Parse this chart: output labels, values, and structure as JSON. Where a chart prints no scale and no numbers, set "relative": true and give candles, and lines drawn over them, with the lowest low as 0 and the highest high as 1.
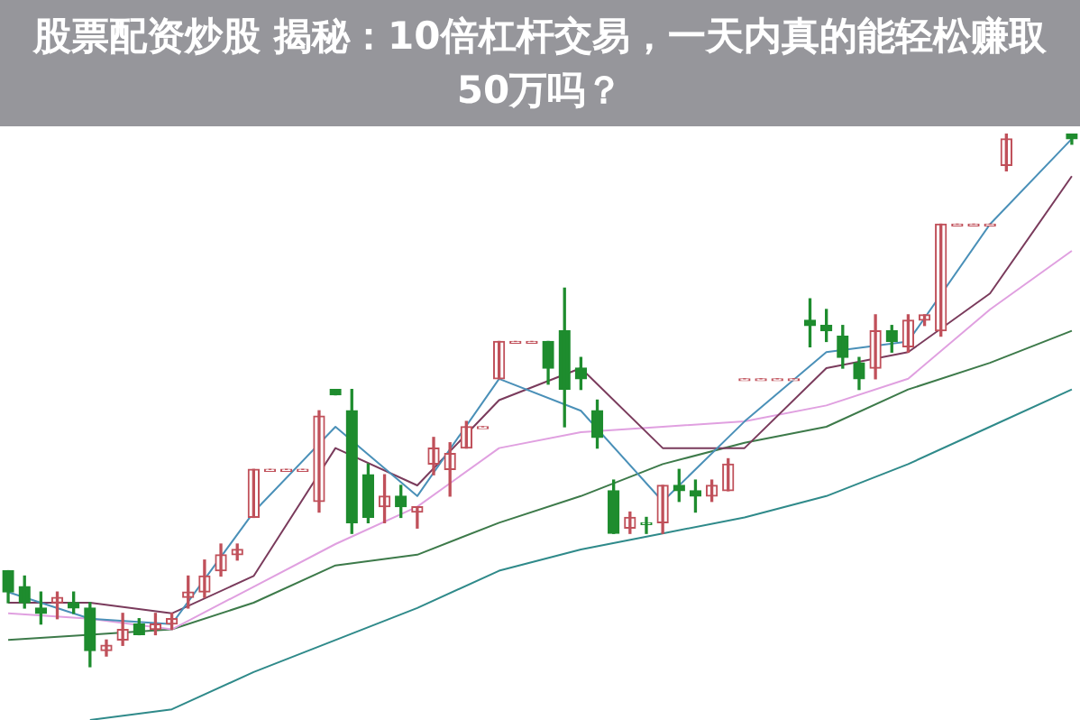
{
  "chart_data": {
    "type": "candlestick",
    "title": "股票配资炒股 揭秘：10倍杠杆交易，一天内真的能轻松赚取50万吗？",
    "relative": true,
    "legend": false,
    "marker": "none",
    "line_style": "solid",
    "categories": [
      null,
      null,
      null,
      null,
      null,
      null,
      null,
      null,
      null,
      null,
      null,
      null,
      null,
      null,
      null,
      null,
      null,
      null,
      null,
      null,
      null,
      null,
      null,
      null,
      null,
      null,
      null,
      null,
      null,
      null,
      null,
      null,
      null,
      null,
      null,
      null,
      null,
      null,
      null,
      null,
      null,
      null,
      null,
      null,
      null,
      null,
      null,
      null,
      null,
      null,
      null,
      null,
      null,
      null,
      null,
      null,
      null,
      null,
      null,
      null,
      null,
      null,
      null,
      null,
      null,
      null
    ],
    "ohlc": [
      [
        0.18,
        0.18,
        0.12,
        0.14
      ],
      [
        0.15,
        0.17,
        0.11,
        0.12
      ],
      [
        0.11,
        0.14,
        0.08,
        0.1
      ],
      [
        0.12,
        0.14,
        0.09,
        0.13
      ],
      [
        0.12,
        0.14,
        0.1,
        0.11
      ],
      [
        0.11,
        0.12,
        0,
        0.03
      ],
      [
        0.03,
        0.05,
        0.02,
        0.04
      ],
      [
        0.05,
        0.1,
        0.04,
        0.07
      ],
      [
        0.08,
        0.09,
        0.06,
        0.06
      ],
      [
        0.07,
        0.1,
        0.06,
        0.08
      ],
      [
        0.08,
        0.1,
        0.07,
        0.09
      ],
      [
        0.13,
        0.17,
        0.11,
        0.14
      ],
      [
        0.14,
        0.2,
        0.13,
        0.17
      ],
      [
        0.18,
        0.23,
        0.17,
        0.21
      ],
      [
        0.21,
        0.23,
        0.2,
        0.22
      ],
      [
        0.28,
        0.37,
        0.28,
        0.37
      ],
      [
        0.37,
        0.37,
        0.37,
        0.37
      ],
      [
        0.37,
        0.37,
        0.37,
        0.37
      ],
      [
        0.37,
        0.37,
        0.37,
        0.37
      ],
      [
        0.31,
        0.48,
        0.29,
        0.47
      ],
      [
        0.52,
        0.52,
        0.51,
        0.51
      ],
      [
        0.48,
        0.52,
        0.25,
        0.27
      ],
      [
        0.36,
        0.38,
        0.27,
        0.28
      ],
      [
        0.3,
        0.36,
        0.27,
        0.32
      ],
      [
        0.32,
        0.34,
        0.28,
        0.3
      ],
      [
        0.29,
        0.3,
        0.26,
        0.3
      ],
      [
        0.38,
        0.43,
        0.36,
        0.41
      ],
      [
        0.37,
        0.42,
        0.32,
        0.4
      ],
      [
        0.41,
        0.46,
        0.41,
        0.45
      ],
      [
        0.45,
        0.45,
        0.45,
        0.45
      ],
      [
        0.54,
        0.61,
        0.54,
        0.61
      ],
      [
        0.61,
        0.61,
        0.61,
        0.61
      ],
      [
        0.61,
        0.61,
        0.61,
        0.61
      ],
      [
        0.61,
        0.61,
        0.53,
        0.56
      ],
      [
        0.63,
        0.71,
        0.45,
        0.52
      ],
      [
        0.56,
        0.58,
        0.52,
        0.54
      ],
      [
        0.48,
        0.5,
        0.41,
        0.43
      ],
      [
        0.33,
        0.35,
        0.25,
        0.25
      ],
      [
        0.26,
        0.29,
        0.25,
        0.28
      ],
      [
        0.27,
        0.28,
        0.25,
        0.27
      ],
      [
        0.27,
        0.34,
        0.25,
        0.34
      ],
      [
        0.34,
        0.37,
        0.31,
        0.33
      ],
      [
        0.33,
        0.35,
        0.29,
        0.32
      ],
      [
        0.32,
        0.35,
        0.31,
        0.34
      ],
      [
        0.33,
        0.39,
        0.33,
        0.38
      ],
      [
        0.54,
        0.54,
        0.54,
        0.54
      ],
      [
        0.54,
        0.54,
        0.54,
        0.54
      ],
      [
        0.54,
        0.54,
        0.54,
        0.54
      ],
      [
        0.54,
        0.54,
        0.54,
        0.54
      ],
      [
        0.65,
        0.69,
        0.6,
        0.64
      ],
      [
        0.64,
        0.67,
        0.61,
        0.63
      ],
      [
        0.62,
        0.64,
        0.56,
        0.58
      ],
      [
        0.57,
        0.58,
        0.52,
        0.54
      ],
      [
        0.56,
        0.66,
        0.54,
        0.63
      ],
      [
        0.63,
        0.64,
        0.59,
        0.61
      ],
      [
        0.6,
        0.66,
        0.59,
        0.65
      ],
      [
        0.65,
        0.66,
        0.64,
        0.66
      ],
      [
        0.63,
        0.83,
        0.62,
        0.83
      ],
      [
        0.83,
        0.83,
        0.83,
        0.83
      ],
      [
        0.83,
        0.83,
        0.83,
        0.83
      ],
      [
        0.83,
        0.83,
        0.83,
        0.83
      ],
      [
        0.94,
        1,
        0.93,
        0.99
      ],
      null,
      null,
      null,
      [
        1,
        1,
        0.98,
        0.99
      ]
    ],
    "colors": [
      "#1e8c2e",
      "#1e8c2e",
      "#1e8c2e",
      "#c0505a",
      "#1e8c2e",
      "#1e8c2e",
      "#c0505a",
      "#c0505a",
      "#1e8c2e",
      "#c0505a",
      "#c0505a",
      "#c0505a",
      "#c0505a",
      "#c0505a",
      "#c0505a",
      "#c0505a",
      "#c0505a",
      "#c0505a",
      "#c0505a",
      "#c0505a",
      "#1e8c2e",
      "#1e8c2e",
      "#1e8c2e",
      "#c0505a",
      "#1e8c2e",
      "#c0505a",
      "#c0505a",
      "#c0505a",
      "#c0505a",
      "#c0505a",
      "#c0505a",
      "#c0505a",
      "#c0505a",
      "#1e8c2e",
      "#1e8c2e",
      "#1e8c2e",
      "#1e8c2e",
      "#1e8c2e",
      "#c0505a",
      "#1e8c2e",
      "#c0505a",
      "#1e8c2e",
      "#1e8c2e",
      "#c0505a",
      "#c0505a",
      "#c0505a",
      "#c0505a",
      "#c0505a",
      "#c0505a",
      "#1e8c2e",
      "#1e8c2e",
      "#1e8c2e",
      "#1e8c2e",
      "#c0505a",
      "#1e8c2e",
      "#c0505a",
      "#c0505a",
      "#c0505a",
      "#c0505a",
      "#c0505a",
      "#c0505a",
      "#c0505a",
      "#1e8c2e",
      "#1e8c2e",
      "#1e8c2e",
      "#1e8c2e"
    ],
    "series": [
      {
        "type": "line",
        "color": "#4a90b8",
        "values": [
          0.14,
          null,
          null,
          null,
          null,
          0.09,
          null,
          null,
          null,
          null,
          0.08,
          null,
          null,
          null,
          null,
          0.29,
          null,
          null,
          null,
          null,
          0.45,
          null,
          null,
          null,
          null,
          0.32,
          null,
          null,
          null,
          null,
          0.54,
          null,
          null,
          null,
          null,
          0.48,
          null,
          null,
          null,
          null,
          0.31,
          null,
          null,
          null,
          null,
          0.46,
          null,
          null,
          null,
          null,
          0.59,
          null,
          null,
          null,
          null,
          0.61,
          null,
          null,
          null,
          null,
          0.83,
          null,
          null,
          null,
          null,
          0.99
        ]
      },
      {
        "type": "line",
        "color": "#7a3b5c",
        "values": [
          0.12,
          null,
          null,
          null,
          null,
          0.12,
          null,
          null,
          null,
          null,
          0.1,
          null,
          null,
          null,
          null,
          0.17,
          null,
          null,
          null,
          null,
          0.41,
          null,
          null,
          null,
          null,
          0.34,
          null,
          null,
          null,
          null,
          0.5,
          null,
          null,
          null,
          null,
          0.56,
          null,
          null,
          null,
          null,
          0.41,
          null,
          null,
          null,
          null,
          0.41,
          null,
          null,
          null,
          null,
          0.56,
          null,
          null,
          null,
          null,
          0.59,
          null,
          null,
          null,
          null,
          0.7,
          null,
          null,
          null,
          null,
          0.92
        ]
      },
      {
        "type": "line",
        "color": "#e0a0e0",
        "values": [
          0.1,
          null,
          null,
          null,
          null,
          0.09,
          null,
          null,
          null,
          null,
          0.07,
          null,
          null,
          null,
          null,
          0.15,
          null,
          null,
          null,
          null,
          0.23,
          null,
          null,
          null,
          null,
          0.3,
          null,
          null,
          null,
          null,
          0.41,
          null,
          null,
          null,
          null,
          0.44,
          null,
          null,
          null,
          null,
          0.45,
          null,
          null,
          null,
          null,
          0.46,
          null,
          null,
          null,
          null,
          0.49,
          null,
          null,
          null,
          null,
          0.54,
          null,
          null,
          null,
          null,
          0.67,
          null,
          null,
          null,
          null,
          0.78
        ]
      },
      {
        "type": "line",
        "color": "#3d7a4a",
        "values": [
          0.05,
          null,
          null,
          null,
          null,
          0.06,
          null,
          null,
          null,
          null,
          0.07,
          null,
          null,
          null,
          null,
          0.12,
          null,
          null,
          null,
          null,
          0.19,
          null,
          null,
          null,
          null,
          0.21,
          null,
          null,
          null,
          null,
          0.27,
          null,
          null,
          null,
          null,
          0.32,
          null,
          null,
          null,
          null,
          0.38,
          null,
          null,
          null,
          null,
          0.42,
          null,
          null,
          null,
          null,
          0.45,
          null,
          null,
          null,
          null,
          0.52,
          null,
          null,
          null,
          null,
          0.57,
          null,
          null,
          null,
          null,
          0.63
        ]
      },
      {
        "type": "line",
        "color": "#2f8a8a",
        "values": [
          null,
          null,
          null,
          null,
          null,
          -0.1,
          null,
          null,
          null,
          null,
          -0.08,
          null,
          null,
          null,
          null,
          -0.01,
          null,
          null,
          null,
          null,
          0.05,
          null,
          null,
          null,
          null,
          0.11,
          null,
          null,
          null,
          null,
          0.18,
          null,
          null,
          null,
          null,
          0.22,
          null,
          null,
          null,
          null,
          0.25,
          null,
          null,
          null,
          null,
          0.28,
          null,
          null,
          null,
          null,
          0.32,
          null,
          null,
          null,
          null,
          0.38,
          null,
          null,
          null,
          null,
          0.45,
          null,
          null,
          null,
          null,
          0.52
        ]
      }
    ]
  }
}
